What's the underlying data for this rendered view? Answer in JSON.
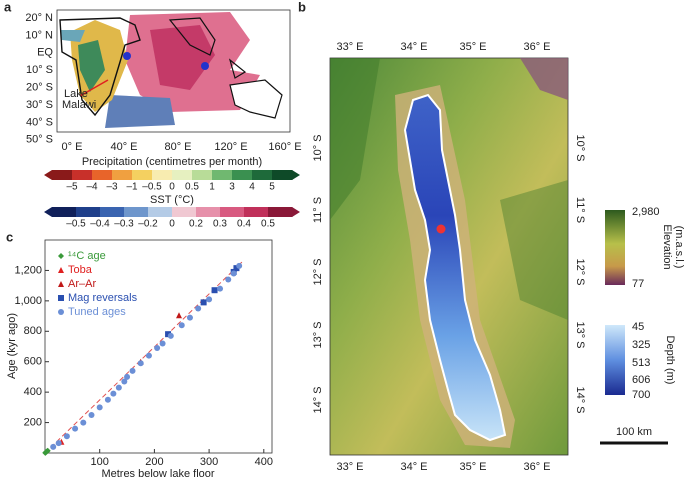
{
  "panel_a": {
    "label": "a",
    "lat_labels": [
      "20° N",
      "10° N",
      "EQ",
      "10° S",
      "20° S",
      "30° S",
      "40° S",
      "50° S"
    ],
    "lon_labels": [
      "0° E",
      "40° E",
      "80° E",
      "120° E",
      "160° E"
    ],
    "annotation": [
      "Lake",
      "Malawi"
    ],
    "precip_title": "Precipitation (centimetres per month)",
    "precip_ticks": [
      "–5",
      "–4",
      "–3",
      "–1",
      "–0.5",
      "0",
      "0.5",
      "1",
      "3",
      "4",
      "5"
    ],
    "sst_title": "SST (°C)",
    "sst_ticks": [
      "–0.5",
      "–0.4",
      "–0.3",
      "–0.2",
      "0",
      "0.2",
      "0.3",
      "0.4",
      "0.5"
    ]
  },
  "panel_b": {
    "label": "b",
    "lon_labels": [
      "33° E",
      "34° E",
      "35° E",
      "36° E"
    ],
    "lat_labels": [
      "10° S",
      "11° S",
      "12° S",
      "13° S",
      "14° S"
    ],
    "elevation_title": [
      "Elevation",
      "(m.a.s.l.)"
    ],
    "elevation_ticks": [
      "2,980",
      "77"
    ],
    "depth_title": "Depth (m)",
    "depth_ticks": [
      "45",
      "325",
      "513",
      "606",
      "700"
    ],
    "scale_bar": "100 km"
  },
  "chart_data": {
    "type": "scatter",
    "label": "c",
    "x_label": "Metres below lake floor",
    "y_label": "Age (kyr ago)",
    "xlim": [
      0,
      415
    ],
    "ylim": [
      0,
      1400
    ],
    "xticks": [
      100,
      200,
      300,
      400
    ],
    "yticks": [
      200,
      400,
      600,
      800,
      {
        "value": 1000,
        "label": "1,000"
      },
      {
        "value": 1200,
        "label": "1,200"
      }
    ],
    "legend": "upper left",
    "series": [
      {
        "name": "¹⁴C age",
        "color": "#3a9a3a",
        "marker": "diamond",
        "x": [
          0.5,
          1,
          2,
          3,
          4,
          5
        ],
        "values": [
          1,
          3,
          6,
          9,
          12,
          15
        ]
      },
      {
        "name": "Toba",
        "color": "#e02020",
        "marker": "triangle",
        "x": [
          30
        ],
        "values": [
          74
        ]
      },
      {
        "name": "Ar–Ar",
        "color": "#c01818",
        "marker": "triangle",
        "x": [
          175,
          245
        ],
        "values": [
          600,
          905
        ]
      },
      {
        "name": "Mag reversals",
        "color": "#2a4fb0",
        "marker": "square",
        "x": [
          225,
          290,
          310,
          345,
          350
        ],
        "values": [
          781,
          990,
          1070,
          1190,
          1215
        ]
      },
      {
        "name": "Tuned ages",
        "color": "#6b8fd6",
        "marker": "circle",
        "x": [
          15,
          25,
          40,
          55,
          70,
          85,
          100,
          115,
          125,
          135,
          145,
          150,
          160,
          175,
          190,
          205,
          215,
          230,
          250,
          265,
          280,
          300,
          320,
          335,
          345,
          355
        ],
        "values": [
          40,
          65,
          110,
          160,
          200,
          250,
          300,
          350,
          390,
          430,
          470,
          500,
          540,
          590,
          640,
          690,
          720,
          770,
          840,
          890,
          950,
          1010,
          1080,
          1140,
          1180,
          1230
        ]
      }
    ],
    "fit_line": {
      "color": "#e05050",
      "x": [
        0,
        360
      ],
      "values": [
        0,
        1255
      ]
    }
  }
}
